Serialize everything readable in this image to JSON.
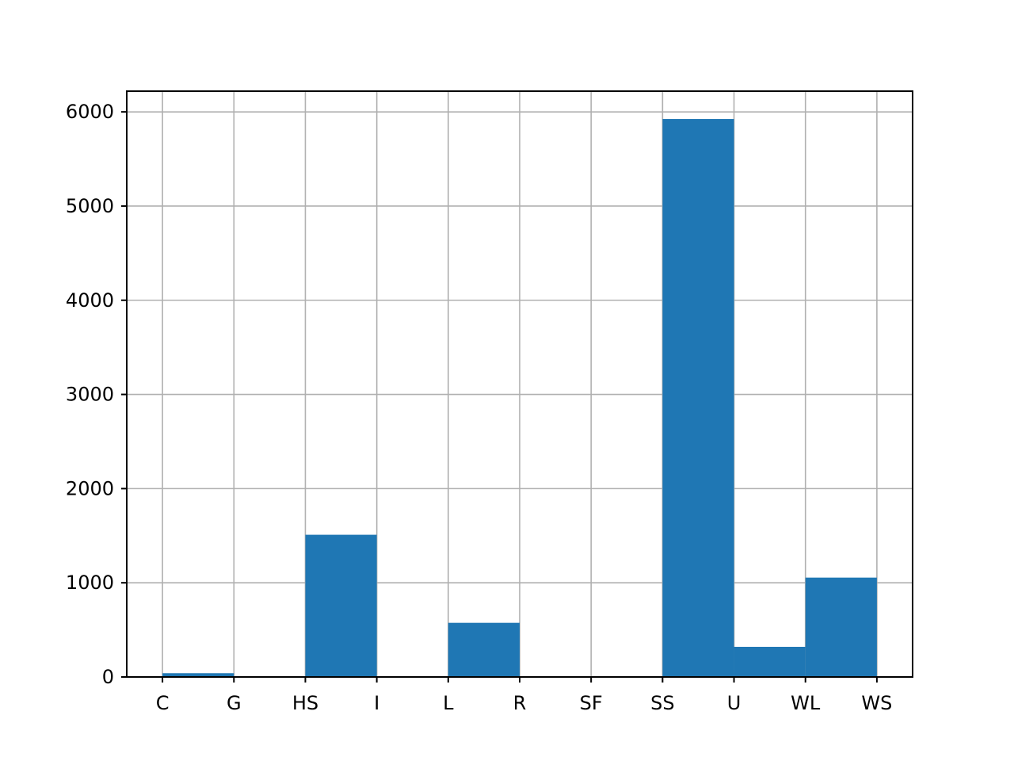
{
  "chart_data": {
    "type": "bar",
    "categories": [
      "C",
      "G",
      "HS",
      "I",
      "L",
      "R",
      "SF",
      "SS",
      "U",
      "WL",
      "WS"
    ],
    "bins": [
      {
        "start": "C",
        "end": "G",
        "value": 40
      },
      {
        "start": "G",
        "end": "HS",
        "value": 0
      },
      {
        "start": "HS",
        "end": "I",
        "value": 1510
      },
      {
        "start": "I",
        "end": "L",
        "value": 0
      },
      {
        "start": "L",
        "end": "R",
        "value": 575
      },
      {
        "start": "R",
        "end": "SF",
        "value": 0
      },
      {
        "start": "SF",
        "end": "SS",
        "value": 0
      },
      {
        "start": "SS",
        "end": "U",
        "value": 5925
      },
      {
        "start": "U",
        "end": "WL",
        "value": 320
      },
      {
        "start": "WL",
        "end": "WS",
        "value": 1055
      }
    ],
    "yticks": [
      0,
      1000,
      2000,
      3000,
      4000,
      5000,
      6000
    ],
    "ylim": [
      0,
      6220
    ],
    "xlim": [
      -0.5,
      10.5
    ],
    "grid": true,
    "title": "",
    "xlabel": "",
    "ylabel": "",
    "colors": {
      "bar": "#1f77b4",
      "grid": "#b0b0b0",
      "axis": "#000000"
    }
  }
}
